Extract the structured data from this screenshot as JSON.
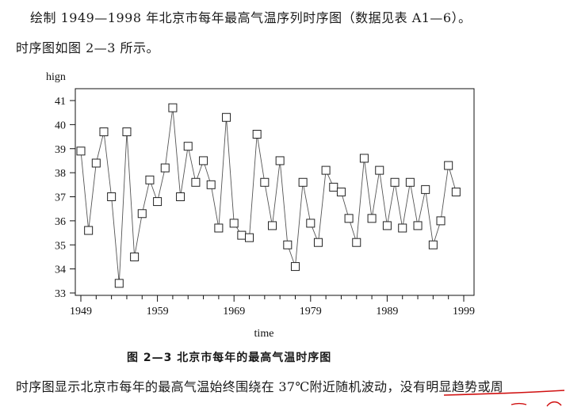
{
  "paragraphs": {
    "line1": "绘制 1949—1998 年北京市每年最高气温序列时序图（数据见表 A1—6）。",
    "line2": "时序图如图 2—3 所示。",
    "line3_normal": "时序图显示北京市每年的最高气温始终围绕在 37℃附近随机波动，",
    "line3_underlined": "没有明显趋势或周"
  },
  "figure": {
    "caption": "图 2—3   北京市每年的最高气温时序图"
  },
  "colors": {
    "text": "#1a1a1a",
    "axis": "#111111",
    "series": "#555555",
    "annotation": "#d01010"
  },
  "chart_data": {
    "type": "line",
    "title": "",
    "xlabel": "time",
    "ylabel": "hign",
    "xlim": [
      1949,
      1999
    ],
    "ylim": [
      33,
      41.5
    ],
    "xticks": [
      1949,
      1959,
      1969,
      1979,
      1989,
      1999
    ],
    "yticks": [
      33,
      34,
      35,
      36,
      37,
      38,
      39,
      40,
      41
    ],
    "marker": "square",
    "grid": false,
    "series": [
      {
        "name": "hign",
        "x": [
          1949,
          1950,
          1951,
          1952,
          1953,
          1954,
          1955,
          1956,
          1957,
          1958,
          1959,
          1960,
          1961,
          1962,
          1963,
          1964,
          1965,
          1966,
          1967,
          1968,
          1969,
          1970,
          1971,
          1972,
          1973,
          1974,
          1975,
          1976,
          1977,
          1978,
          1979,
          1980,
          1981,
          1982,
          1983,
          1984,
          1985,
          1986,
          1987,
          1988,
          1989,
          1990,
          1991,
          1992,
          1993,
          1994,
          1995,
          1996,
          1997,
          1998
        ],
        "y": [
          38.9,
          35.6,
          38.4,
          39.7,
          37.0,
          33.4,
          39.7,
          34.5,
          36.3,
          37.7,
          36.8,
          38.2,
          40.7,
          37.0,
          39.1,
          37.6,
          38.5,
          37.5,
          35.7,
          40.3,
          35.9,
          35.4,
          35.3,
          39.6,
          37.6,
          35.8,
          38.5,
          35.0,
          34.1,
          37.6,
          35.9,
          35.1,
          38.1,
          37.4,
          37.2,
          36.1,
          35.1,
          38.6,
          36.1,
          38.1,
          35.8,
          37.6,
          35.7,
          37.6,
          35.8,
          37.3,
          35.0,
          36.0,
          38.3,
          37.2
        ]
      }
    ]
  }
}
